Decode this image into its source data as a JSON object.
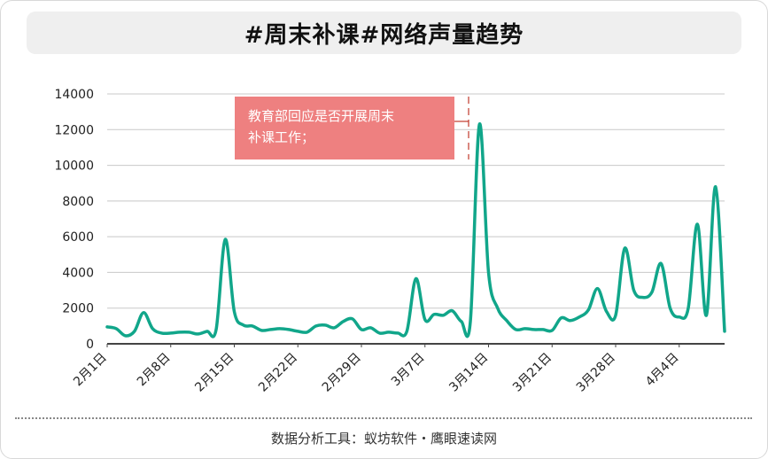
{
  "chart_data": {
    "type": "line",
    "title": "#周末补课#网络声量趋势",
    "xlabel": "",
    "ylabel": "",
    "ylim": [
      0,
      14000
    ],
    "y_ticks": [
      0,
      2000,
      4000,
      6000,
      8000,
      10000,
      12000,
      14000
    ],
    "x_tick_labels": [
      "2月1日",
      "2月8日",
      "2月15日",
      "2月22日",
      "2月29日",
      "3月7日",
      "3月14日",
      "3月21日",
      "3月28日",
      "4月4日"
    ],
    "x_start": "2月1日",
    "grid": true,
    "legend": "none",
    "line_color": "#11a68a",
    "annotation": {
      "text_line1": "教育部回应是否开展周末",
      "text_line2": "补课工作；",
      "at_x": "3月12日",
      "box_color": "#ee8080",
      "marker_color": "#c0392b"
    },
    "series": [
      {
        "values": [
          950,
          850,
          450,
          700,
          1750,
          850,
          600,
          600,
          650,
          650,
          550,
          700,
          800,
          5850,
          1800,
          1050,
          1000,
          750,
          800,
          850,
          800,
          700,
          650,
          1000,
          1050,
          900,
          1250,
          1400,
          800,
          900,
          600,
          650,
          600,
          700,
          3650,
          1350,
          1650,
          1600,
          1850,
          1250,
          1250,
          12300,
          4000,
          2000,
          1300,
          800,
          850,
          800,
          800,
          750,
          1450,
          1300,
          1500,
          1900,
          3100,
          1800,
          1600,
          5350,
          3000,
          2600,
          2900,
          4500,
          2000,
          1500,
          2000,
          6700,
          1600,
          8800,
          700
        ]
      }
    ]
  },
  "footer": {
    "source": "数据分析工具：蚁坊软件・鹰眼速读网"
  }
}
